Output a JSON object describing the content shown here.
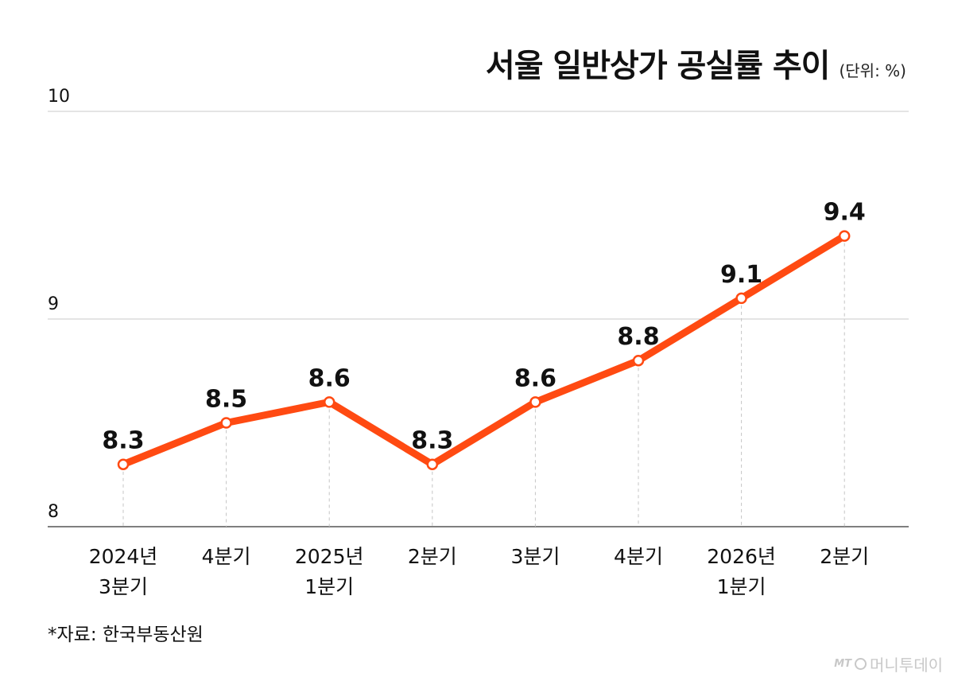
{
  "header": {
    "title": "서울 일반상가 공실률 추이",
    "unit": "(단위: %)"
  },
  "chart_data": {
    "type": "line",
    "title": "서울 일반상가 공실률 추이",
    "unit": "(단위: %)",
    "categories": [
      [
        "2024년",
        "3분기"
      ],
      [
        "4분기"
      ],
      [
        "2025년",
        "1분기"
      ],
      [
        "2분기"
      ],
      [
        "3분기"
      ],
      [
        "4분기"
      ],
      [
        "2026년",
        "1분기"
      ],
      [
        "2분기"
      ]
    ],
    "values": [
      8.3,
      8.5,
      8.6,
      8.3,
      8.6,
      8.8,
      9.1,
      9.4
    ],
    "data_labels": [
      "8.3",
      "8.5",
      "8.6",
      "8.3",
      "8.6",
      "8.8",
      "9.1",
      "9.4"
    ],
    "ylim": [
      8,
      10
    ],
    "yticks": [
      8,
      9,
      10
    ],
    "grid": true,
    "line_color": "#ff4a12",
    "marker_fill": "#ffffff"
  },
  "footer": {
    "source": "*자료: 한국부동산원"
  },
  "logo": {
    "mark": "MT",
    "name": "머니투데이"
  }
}
